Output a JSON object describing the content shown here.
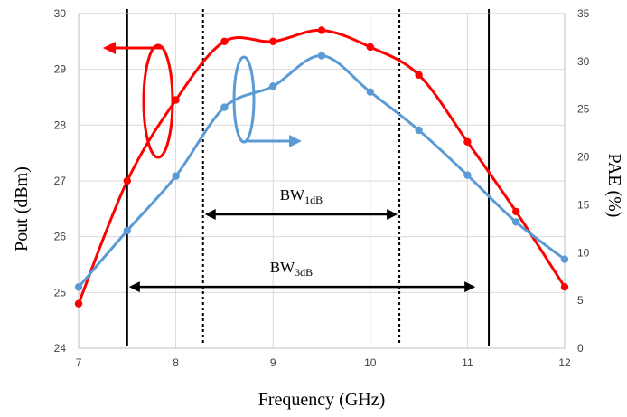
{
  "chart_data": {
    "type": "line",
    "title": "",
    "xlabel": "Frequency (GHz)",
    "ylabel_left": "Pout (dBm)",
    "ylabel_right": "PAE (%)",
    "xlim": [
      7,
      12
    ],
    "ylim_left": [
      24,
      30
    ],
    "ylim_right": [
      0,
      35
    ],
    "xticks": [
      "7",
      "8",
      "9",
      "10",
      "11",
      "12"
    ],
    "yticks_left": [
      "24",
      "25",
      "26",
      "27",
      "28",
      "29",
      "30"
    ],
    "yticks_right": [
      "0",
      "5",
      "10",
      "15",
      "20",
      "25",
      "30",
      "35"
    ],
    "grid": true,
    "series": [
      {
        "axis": "left",
        "color": "#ff0000",
        "x": [
          7,
          7.5,
          8,
          8.5,
          9,
          9.5,
          10,
          10.5,
          11,
          11.5,
          12
        ],
        "y": [
          24.8,
          27.0,
          28.45,
          29.5,
          29.5,
          29.7,
          29.4,
          28.9,
          27.7,
          26.45,
          25.1
        ]
      },
      {
        "axis": "right",
        "color": "#5b9bd5",
        "x": [
          7,
          7.5,
          8,
          8.5,
          9,
          9.5,
          10,
          10.5,
          11,
          11.5,
          12
        ],
        "y": [
          6.4,
          12.3,
          18.0,
          25.2,
          27.4,
          30.6,
          26.8,
          22.8,
          18.1,
          13.2,
          9.3
        ]
      }
    ],
    "vlines": [
      {
        "x": 7.5,
        "style": "solid"
      },
      {
        "x": 8.28,
        "style": "dotted"
      },
      {
        "x": 10.3,
        "style": "dotted"
      },
      {
        "x": 11.22,
        "style": "solid"
      }
    ],
    "annotations": [
      {
        "main": "BW",
        "sub": "1dB",
        "x_from": 8.28,
        "x_to": 10.3,
        "y": 26.4
      },
      {
        "main": "BW",
        "sub": "3dB",
        "x_from": 7.5,
        "x_to": 11.1,
        "y": 25.1
      }
    ]
  }
}
